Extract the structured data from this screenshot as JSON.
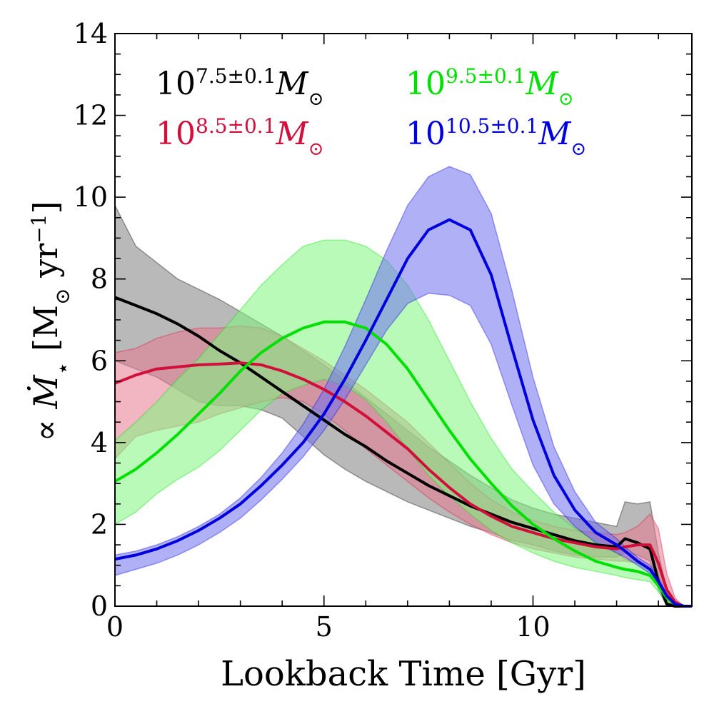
{
  "chart_data": {
    "type": "line",
    "xlabel": "Lookback Time [Gyr]",
    "ylabel": {
      "prefix": "∝ ",
      "symbol": "Ṁ",
      "subscript": "⋆",
      "units_open": " [M",
      "units_sun": "⊙",
      "units_yr": " yr",
      "units_exp": "−1",
      "units_close": "]"
    },
    "xlim": [
      0,
      13.8
    ],
    "ylim": [
      0,
      14
    ],
    "xticks": [
      0,
      5,
      10
    ],
    "yticks": [
      0,
      2,
      4,
      6,
      8,
      10,
      12,
      14
    ],
    "x": [
      0,
      0.5,
      1,
      1.5,
      2,
      2.5,
      3,
      3.5,
      4,
      4.5,
      5,
      5.5,
      6,
      6.5,
      7,
      7.5,
      8,
      8.5,
      9,
      9.5,
      10,
      10.5,
      11,
      11.5,
      12,
      12.2,
      12.5,
      12.8,
      13,
      13.2,
      13.4,
      13.6,
      13.8
    ],
    "series": [
      {
        "name": "10^{7.5±0.1} M⊙",
        "legend": {
          "base": "10",
          "exp": "7.5±0.1",
          "mass": "M",
          "sun": "⊙"
        },
        "color": "#000000",
        "fill": "#7f7f7f",
        "median": [
          7.55,
          7.35,
          7.15,
          6.9,
          6.6,
          6.25,
          5.95,
          5.6,
          5.25,
          4.9,
          4.55,
          4.2,
          3.9,
          3.55,
          3.25,
          2.95,
          2.7,
          2.45,
          2.25,
          2.05,
          1.9,
          1.75,
          1.6,
          1.5,
          1.45,
          1.65,
          1.55,
          1.4,
          0.6,
          0.05,
          0.0,
          0.0,
          0.0
        ],
        "upper": [
          9.8,
          8.8,
          8.4,
          8.0,
          7.75,
          7.5,
          7.2,
          6.9,
          6.6,
          6.25,
          5.9,
          5.5,
          5.1,
          4.7,
          4.3,
          3.9,
          3.55,
          3.2,
          2.9,
          2.6,
          2.4,
          2.25,
          2.15,
          2.05,
          1.95,
          2.55,
          2.5,
          2.55,
          1.3,
          0.4,
          0.05,
          0.0,
          0.0
        ],
        "lower": [
          6.0,
          5.8,
          5.6,
          5.3,
          5.0,
          4.9,
          4.9,
          4.8,
          4.6,
          4.15,
          3.7,
          3.35,
          3.05,
          2.8,
          2.55,
          2.35,
          2.15,
          1.95,
          1.8,
          1.6,
          1.5,
          1.35,
          1.25,
          1.2,
          1.2,
          1.3,
          1.25,
          1.1,
          0.4,
          0.0,
          0.0,
          0.0,
          0.0
        ]
      },
      {
        "name": "10^{8.5±0.1} M⊙",
        "legend": {
          "base": "10",
          "exp": "8.5±0.1",
          "mass": "M",
          "sun": "⊙"
        },
        "color": "#d0103a",
        "fill": "#e8798f",
        "median": [
          5.45,
          5.65,
          5.8,
          5.85,
          5.9,
          5.92,
          5.95,
          5.9,
          5.75,
          5.55,
          5.3,
          5.0,
          4.65,
          4.25,
          3.85,
          3.35,
          2.9,
          2.5,
          2.2,
          1.95,
          1.8,
          1.65,
          1.55,
          1.45,
          1.4,
          1.45,
          1.5,
          1.5,
          1.05,
          0.4,
          0.1,
          0.0,
          0.0
        ],
        "upper": [
          6.2,
          6.3,
          6.55,
          6.7,
          6.8,
          6.8,
          6.85,
          6.8,
          6.6,
          6.3,
          6.0,
          5.65,
          5.3,
          4.9,
          4.5,
          4.0,
          3.5,
          3.0,
          2.6,
          2.3,
          2.1,
          1.95,
          1.85,
          1.8,
          1.75,
          1.8,
          1.95,
          2.25,
          1.9,
          0.8,
          0.2,
          0.0,
          0.0
        ],
        "lower": [
          3.6,
          4.15,
          4.3,
          4.4,
          4.5,
          4.7,
          4.85,
          5.0,
          5.1,
          5.0,
          4.7,
          4.3,
          3.85,
          3.45,
          3.05,
          2.65,
          2.3,
          2.0,
          1.75,
          1.55,
          1.4,
          1.3,
          1.2,
          1.15,
          1.1,
          1.1,
          1.05,
          0.95,
          0.6,
          0.15,
          0.0,
          0.0,
          0.0
        ]
      },
      {
        "name": "10^{9.5±0.1} M⊙",
        "legend": {
          "base": "10",
          "exp": "9.5±0.1",
          "mass": "M",
          "sun": "⊙"
        },
        "color": "#00e000",
        "fill": "#7ff57f",
        "median": [
          3.05,
          3.35,
          3.75,
          4.2,
          4.7,
          5.2,
          5.75,
          6.2,
          6.55,
          6.8,
          6.95,
          6.95,
          6.8,
          6.4,
          5.8,
          5.05,
          4.3,
          3.6,
          3.0,
          2.45,
          2.0,
          1.65,
          1.35,
          1.1,
          0.95,
          0.9,
          0.85,
          0.75,
          0.5,
          0.2,
          0.05,
          0.0,
          0.0
        ],
        "upper": [
          4.05,
          4.5,
          5.0,
          5.55,
          6.05,
          6.65,
          7.25,
          7.85,
          8.35,
          8.8,
          8.95,
          8.95,
          8.8,
          8.45,
          7.85,
          7.0,
          6.0,
          5.0,
          4.1,
          3.35,
          2.8,
          2.3,
          1.9,
          1.6,
          1.3,
          1.15,
          1.05,
          0.9,
          0.6,
          0.25,
          0.05,
          0.0,
          0.0
        ],
        "lower": [
          2.0,
          2.3,
          2.75,
          3.1,
          3.4,
          3.8,
          4.3,
          4.8,
          5.2,
          5.4,
          5.55,
          5.4,
          5.05,
          4.5,
          3.85,
          3.2,
          2.7,
          2.25,
          1.85,
          1.55,
          1.3,
          1.1,
          0.95,
          0.85,
          0.75,
          0.7,
          0.65,
          0.6,
          0.35,
          0.1,
          0.0,
          0.0,
          0.0
        ]
      },
      {
        "name": "10^{10.5±0.1} M⊙",
        "legend": {
          "base": "10",
          "exp": "10.5±0.1",
          "mass": "M",
          "sun": "⊙"
        },
        "color": "#0000dd",
        "fill": "#6f6ff0",
        "median": [
          1.15,
          1.25,
          1.4,
          1.6,
          1.85,
          2.15,
          2.5,
          2.95,
          3.45,
          4.0,
          4.7,
          5.55,
          6.5,
          7.5,
          8.5,
          9.2,
          9.45,
          9.2,
          8.1,
          6.3,
          4.55,
          3.2,
          2.35,
          1.8,
          1.5,
          1.35,
          1.1,
          0.9,
          0.6,
          0.25,
          0.05,
          0.0,
          0.0
        ],
        "upper": [
          1.25,
          1.35,
          1.5,
          1.7,
          1.95,
          2.25,
          2.65,
          3.15,
          3.75,
          4.45,
          5.3,
          6.35,
          7.5,
          8.7,
          9.8,
          10.5,
          10.75,
          10.55,
          9.6,
          7.7,
          5.6,
          3.9,
          2.8,
          2.05,
          1.65,
          1.45,
          1.2,
          1.0,
          0.7,
          0.3,
          0.05,
          0.0,
          0.0
        ],
        "lower": [
          0.75,
          0.9,
          1.05,
          1.25,
          1.5,
          1.8,
          2.15,
          2.6,
          3.1,
          3.65,
          4.3,
          5.05,
          5.9,
          6.75,
          7.4,
          7.65,
          7.6,
          7.35,
          6.4,
          4.9,
          3.45,
          2.5,
          1.95,
          1.55,
          1.3,
          1.2,
          1.0,
          0.8,
          0.5,
          0.2,
          0.0,
          0.0,
          0.0
        ]
      }
    ]
  }
}
